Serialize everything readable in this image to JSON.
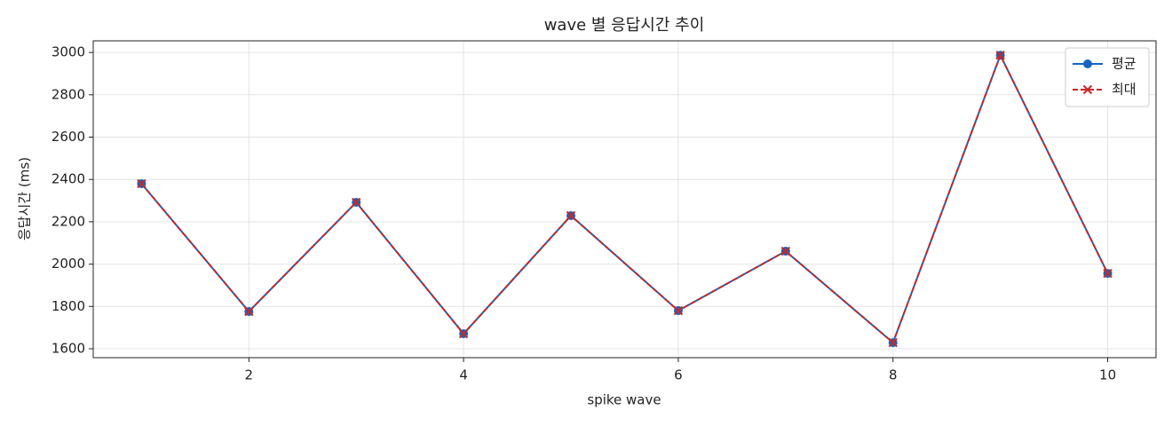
{
  "chart_data": {
    "type": "line",
    "title": "wave 별 응답시간 추이",
    "xlabel": "spike wave",
    "ylabel": "응답시간 (ms)",
    "x": [
      1,
      2,
      3,
      4,
      5,
      6,
      7,
      8,
      9,
      10
    ],
    "series": [
      {
        "name": "평균",
        "color": "#1565c0",
        "marker": "o",
        "linestyle": "solid",
        "values": [
          2380,
          1776,
          2292,
          1671,
          2229,
          1780,
          2061,
          1629,
          2987,
          1956
        ]
      },
      {
        "name": "최대",
        "color": "#c62828",
        "marker": "x",
        "linestyle": "dashed",
        "values": [
          2380,
          1776,
          2292,
          1671,
          2229,
          1780,
          2061,
          1629,
          2987,
          1956
        ]
      }
    ],
    "xlim": [
      0.55,
      10.45
    ],
    "xticks": [
      2,
      4,
      6,
      8,
      10
    ],
    "ylim": [
      1558,
      3055
    ],
    "yticks": [
      1600,
      1800,
      2000,
      2200,
      2400,
      2600,
      2800,
      3000
    ],
    "grid": true,
    "legend": "upper right"
  }
}
